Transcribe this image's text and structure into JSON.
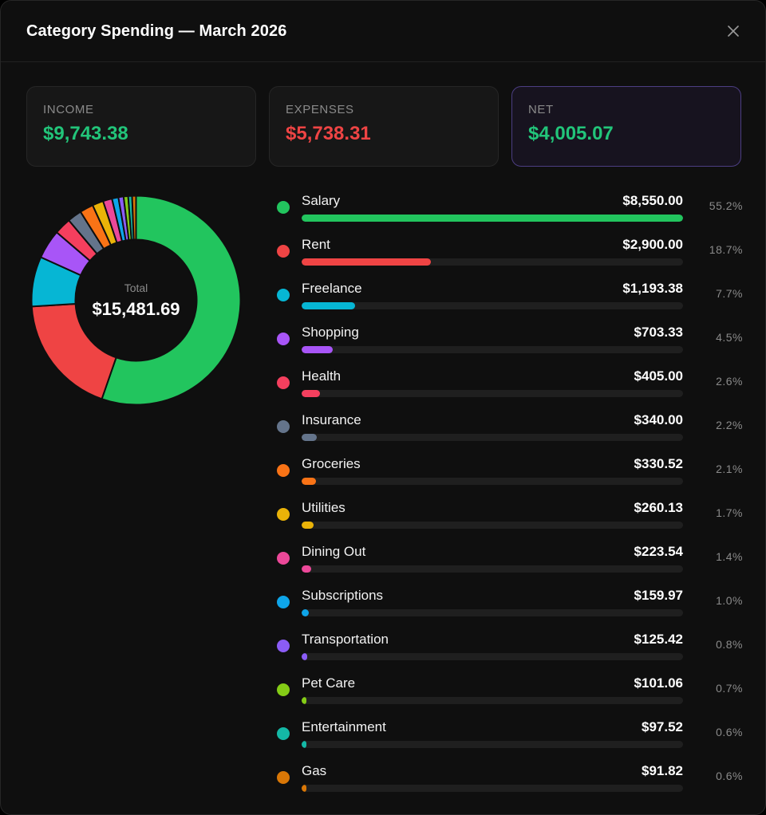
{
  "header": {
    "title": "Category Spending — March 2026",
    "close_icon": "close-icon"
  },
  "summary": {
    "income": {
      "label": "INCOME",
      "value": "$9,743.38",
      "color": "#22c57a"
    },
    "expenses": {
      "label": "EXPENSES",
      "value": "$5,738.31",
      "color": "#ef4444"
    },
    "net": {
      "label": "NET",
      "value": "$4,005.07",
      "color": "#22c57a"
    }
  },
  "donut": {
    "total_label": "Total",
    "total_value": "$15,481.69"
  },
  "categories": [
    {
      "name": "Salary",
      "amount": "$8,550.00",
      "pct": "55.2%",
      "share": 55.2,
      "color": "#22c55e"
    },
    {
      "name": "Rent",
      "amount": "$2,900.00",
      "pct": "18.7%",
      "share": 18.7,
      "color": "#ef4444"
    },
    {
      "name": "Freelance",
      "amount": "$1,193.38",
      "pct": "7.7%",
      "share": 7.7,
      "color": "#06b6d4"
    },
    {
      "name": "Shopping",
      "amount": "$703.33",
      "pct": "4.5%",
      "share": 4.5,
      "color": "#a855f7"
    },
    {
      "name": "Health",
      "amount": "$405.00",
      "pct": "2.6%",
      "share": 2.6,
      "color": "#f43f5e"
    },
    {
      "name": "Insurance",
      "amount": "$340.00",
      "pct": "2.2%",
      "share": 2.2,
      "color": "#64748b"
    },
    {
      "name": "Groceries",
      "amount": "$330.52",
      "pct": "2.1%",
      "share": 2.1,
      "color": "#f97316"
    },
    {
      "name": "Utilities",
      "amount": "$260.13",
      "pct": "1.7%",
      "share": 1.7,
      "color": "#eab308"
    },
    {
      "name": "Dining Out",
      "amount": "$223.54",
      "pct": "1.4%",
      "share": 1.4,
      "color": "#ec4899"
    },
    {
      "name": "Subscriptions",
      "amount": "$159.97",
      "pct": "1.0%",
      "share": 1.0,
      "color": "#0ea5e9"
    },
    {
      "name": "Transportation",
      "amount": "$125.42",
      "pct": "0.8%",
      "share": 0.8,
      "color": "#8b5cf6"
    },
    {
      "name": "Pet Care",
      "amount": "$101.06",
      "pct": "0.7%",
      "share": 0.7,
      "color": "#84cc16"
    },
    {
      "name": "Entertainment",
      "amount": "$97.52",
      "pct": "0.6%",
      "share": 0.6,
      "color": "#14b8a6"
    },
    {
      "name": "Gas",
      "amount": "$91.82",
      "pct": "0.6%",
      "share": 0.6,
      "color": "#d97706"
    }
  ]
}
